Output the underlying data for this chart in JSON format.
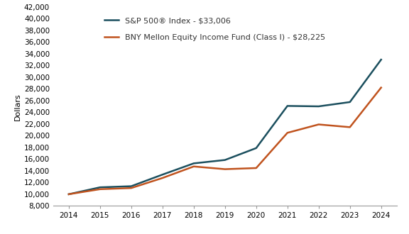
{
  "series": [
    {
      "label": "S&P 500® Index - $33,006",
      "color": "#1b4f5e",
      "linewidth": 1.8,
      "years": [
        2014,
        2015,
        2016,
        2017,
        2018,
        2019,
        2020,
        2021,
        2022,
        2023,
        2024
      ],
      "values": [
        10000,
        11179,
        11370,
        13354,
        15274,
        15851,
        17885,
        25094,
        25019,
        25752,
        33006
      ]
    },
    {
      "label": "BNY Mellon Equity Income Fund (Class I) - $28,225",
      "color": "#c0531e",
      "linewidth": 1.8,
      "years": [
        2014,
        2015,
        2016,
        2017,
        2018,
        2019,
        2020,
        2021,
        2022,
        2023,
        2024
      ],
      "values": [
        10000,
        10861,
        11056,
        12775,
        14744,
        14284,
        14473,
        20498,
        21927,
        21462,
        28225
      ]
    }
  ],
  "ylabel": "Dollars",
  "ylim": [
    8000,
    42000
  ],
  "yticks": [
    8000,
    10000,
    12000,
    14000,
    16000,
    18000,
    20000,
    22000,
    24000,
    26000,
    28000,
    30000,
    32000,
    34000,
    36000,
    38000,
    40000,
    42000
  ],
  "xticks": [
    2014,
    2015,
    2016,
    2017,
    2018,
    2019,
    2020,
    2021,
    2022,
    2023,
    2024
  ],
  "background_color": "#ffffff",
  "legend_fontsize": 8,
  "ylabel_fontsize": 8,
  "tick_fontsize": 7.5,
  "spine_color": "#999999"
}
